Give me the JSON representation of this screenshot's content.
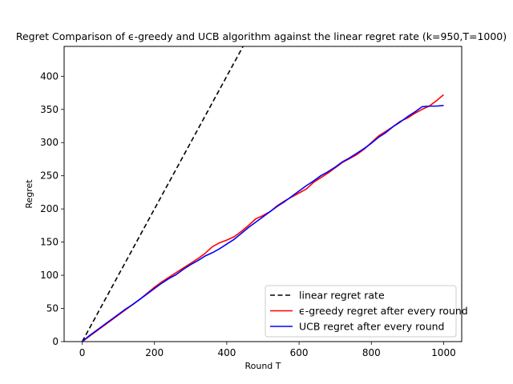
{
  "chart_data": {
    "type": "line",
    "title": "Regret Comparison of ϵ-greedy and UCB algorithm against the linear regret rate (k=950,T=1000)",
    "xlabel": "Round T",
    "ylabel": "Regret",
    "xlim": [
      -50,
      1050
    ],
    "ylim": [
      0,
      445
    ],
    "xticks": [
      0,
      200,
      400,
      600,
      800,
      1000
    ],
    "yticks": [
      0,
      50,
      100,
      150,
      200,
      250,
      300,
      350,
      400
    ],
    "grid": false,
    "legend_position": "lower-right",
    "series": [
      {
        "name": "linear regret rate",
        "color": "#000000",
        "style": "dashed",
        "x": [
          0,
          445
        ],
        "y": [
          0,
          445
        ]
      },
      {
        "name": "ϵ-greedy regret after every round",
        "color": "#ff0000",
        "style": "solid",
        "x": [
          0,
          20,
          40,
          60,
          80,
          100,
          120,
          140,
          160,
          180,
          200,
          220,
          240,
          260,
          280,
          300,
          320,
          340,
          360,
          380,
          400,
          420,
          440,
          460,
          480,
          500,
          520,
          540,
          560,
          580,
          600,
          620,
          640,
          660,
          680,
          700,
          720,
          740,
          760,
          780,
          800,
          820,
          840,
          860,
          880,
          900,
          920,
          940,
          960,
          980,
          995,
          1000
        ],
        "y": [
          0,
          8,
          16,
          24,
          32,
          40,
          48,
          56,
          64,
          73,
          82,
          90,
          97,
          104,
          111,
          118,
          125,
          133,
          143,
          149,
          153,
          158,
          166,
          175,
          185,
          190,
          196,
          205,
          212,
          218,
          224,
          230,
          240,
          247,
          254,
          262,
          270,
          276,
          282,
          290,
          300,
          310,
          317,
          324,
          332,
          337,
          344,
          350,
          355,
          363,
          370,
          372
        ]
      },
      {
        "name": "UCB regret after every round",
        "color": "#0000ff",
        "style": "solid",
        "x": [
          0,
          20,
          40,
          60,
          80,
          100,
          120,
          140,
          160,
          180,
          200,
          220,
          240,
          260,
          280,
          300,
          320,
          340,
          360,
          380,
          400,
          420,
          440,
          460,
          480,
          500,
          520,
          540,
          560,
          580,
          600,
          620,
          640,
          660,
          680,
          700,
          720,
          740,
          760,
          780,
          800,
          820,
          840,
          860,
          880,
          900,
          920,
          940,
          960,
          980,
          1000
        ],
        "y": [
          0,
          9,
          17,
          25,
          33,
          41,
          49,
          56,
          64,
          72,
          80,
          88,
          95,
          101,
          109,
          116,
          122,
          129,
          134,
          140,
          147,
          154,
          163,
          172,
          180,
          188,
          196,
          204,
          211,
          219,
          227,
          235,
          242,
          250,
          256,
          263,
          271,
          277,
          284,
          291,
          299,
          308,
          315,
          324,
          331,
          339,
          346,
          354,
          355,
          355,
          356
        ]
      }
    ]
  }
}
